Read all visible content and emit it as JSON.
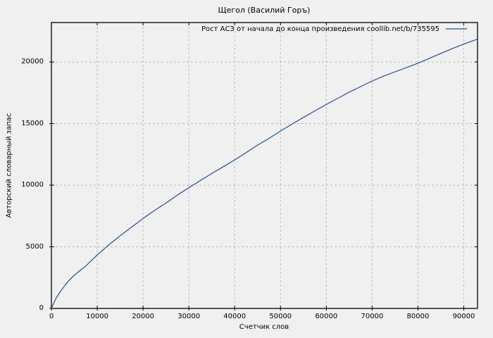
{
  "colors": {
    "background": "#f0f0f0",
    "plot_border": "#000000",
    "grid": "#bbbbbb",
    "text": "#000000",
    "line": "#234e9c"
  },
  "chart_data": {
    "type": "line",
    "title": "Щегол (Василий Горъ)",
    "xlabel": "Счетчик слов",
    "ylabel": "Авторский словарный запас",
    "xlim": [
      0,
      93000
    ],
    "ylim": [
      0,
      23200
    ],
    "xticks": [
      0,
      10000,
      20000,
      30000,
      40000,
      50000,
      60000,
      70000,
      80000,
      90000
    ],
    "yticks": [
      0,
      5000,
      10000,
      15000,
      20000
    ],
    "grid": true,
    "legend_position": "top-right-inside",
    "x": [
      0,
      1000,
      2000,
      3000,
      4000,
      5000,
      6250,
      7500,
      8750,
      10000,
      12500,
      15000,
      17500,
      20000,
      22500,
      25000,
      27500,
      30000,
      32500,
      35000,
      37500,
      40000,
      42500,
      45000,
      47500,
      50000,
      52500,
      55000,
      57500,
      60000,
      62500,
      65000,
      67500,
      70000,
      72500,
      75000,
      77500,
      80000,
      82500,
      85000,
      87500,
      90000,
      91500,
      93000
    ],
    "series": [
      {
        "name": "Рост АСЗ от начала до конца произведения coollib.net/b/735595",
        "color": "#234e9c",
        "y": [
          0,
          820,
          1400,
          1900,
          2330,
          2700,
          3080,
          3440,
          3900,
          4350,
          5150,
          5900,
          6600,
          7300,
          7950,
          8550,
          9200,
          9800,
          10380,
          10950,
          11500,
          12050,
          12650,
          13250,
          13800,
          14400,
          14950,
          15500,
          16030,
          16550,
          17050,
          17550,
          18000,
          18460,
          18850,
          19200,
          19550,
          19900,
          20300,
          20700,
          21080,
          21450,
          21650,
          21850
        ]
      }
    ]
  }
}
